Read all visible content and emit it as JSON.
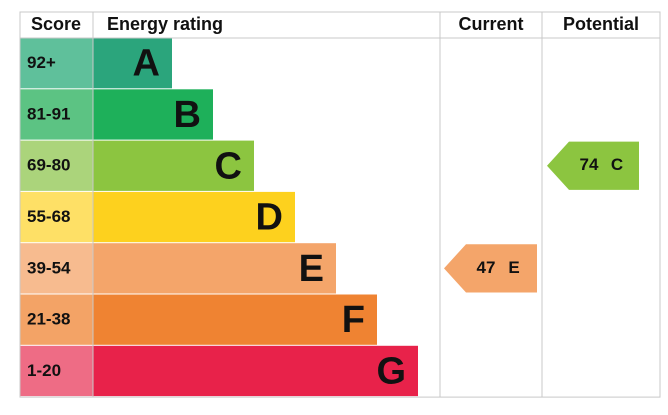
{
  "header": {
    "score": "Score",
    "rating": "Energy rating",
    "current": "Current",
    "potential": "Potential"
  },
  "rows": [
    {
      "score": "92+",
      "band": "A",
      "color": "#2ba57c",
      "score_color": "#5fc09b"
    },
    {
      "score": "81-91",
      "band": "B",
      "color": "#1eb05a",
      "score_color": "#5cc383"
    },
    {
      "score": "69-80",
      "band": "C",
      "color": "#8cc540",
      "score_color": "#abd47b"
    },
    {
      "score": "55-68",
      "band": "D",
      "color": "#fdd11e",
      "score_color": "#fee066"
    },
    {
      "score": "39-54",
      "band": "E",
      "color": "#f4a56a",
      "score_color": "#f7bb8f"
    },
    {
      "score": "21-38",
      "band": "F",
      "color": "#ef8332",
      "score_color": "#f3a366"
    },
    {
      "score": "1-20",
      "band": "G",
      "color": "#e8224a",
      "score_color": "#ee6c85"
    }
  ],
  "current": {
    "value": 47,
    "band": "E"
  },
  "potential": {
    "value": 74,
    "band": "C"
  }
}
